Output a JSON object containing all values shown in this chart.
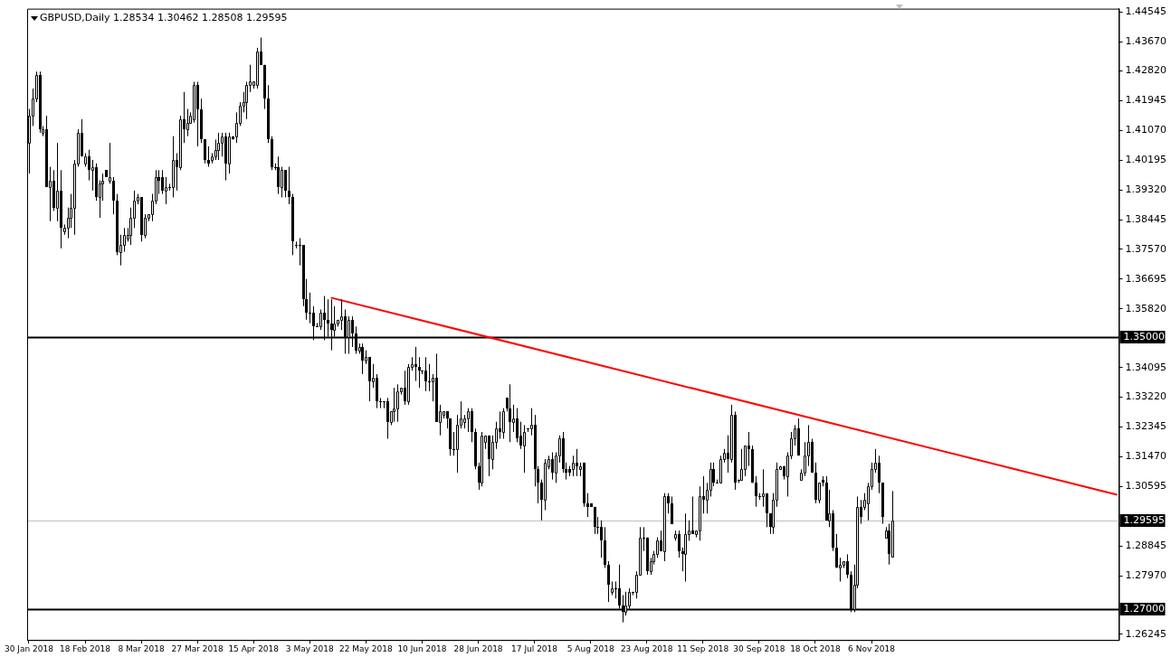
{
  "chart_data": {
    "type": "candlestick",
    "title": "GBPUSD,Daily 1.28534 1.30462 1.28508 1.29595",
    "categories": [
      "30 Jan 2018",
      null,
      null,
      null,
      null,
      null,
      null,
      null,
      null,
      null,
      null,
      null,
      null,
      null,
      null,
      null,
      "18 Feb 2018",
      null,
      null,
      null,
      null,
      null,
      null,
      null,
      null,
      null,
      null,
      null,
      null,
      null,
      null,
      null,
      "8 Mar 2018",
      null,
      null,
      null,
      null,
      null,
      null,
      null,
      null,
      null,
      null,
      null,
      null,
      null,
      null,
      null,
      "27 Mar 2018",
      null,
      null,
      null,
      null,
      null,
      null,
      null,
      null,
      null,
      null,
      null,
      null,
      null,
      null,
      null,
      "15 Apr 2018",
      null,
      null,
      null,
      null,
      null,
      null,
      null,
      null,
      null,
      null,
      null,
      null,
      null,
      null,
      null,
      "3 May 2018",
      null,
      null,
      null,
      null,
      null,
      null,
      null,
      null,
      null,
      null,
      null,
      null,
      null,
      null,
      null,
      "22 May 2018",
      null,
      null,
      null,
      null,
      null,
      null,
      null,
      null,
      null,
      null,
      null,
      null,
      null,
      null,
      null,
      "10 Jun 2018",
      null,
      null,
      null,
      null,
      null,
      null,
      null,
      null,
      null,
      null,
      null,
      null,
      null,
      null,
      null,
      "28 Jun 2018",
      null,
      null,
      null,
      null,
      null,
      null,
      null,
      null,
      null,
      null,
      null,
      null,
      null,
      null,
      null,
      "17 Jul 2018",
      null,
      null,
      null,
      null,
      null,
      null,
      null,
      null,
      null,
      null,
      null,
      null,
      null,
      null,
      null,
      "5 Aug 2018",
      null,
      null,
      null,
      null,
      null,
      null,
      null,
      null,
      null,
      null,
      null,
      null,
      null,
      null,
      null,
      "23 Aug 2018",
      null,
      null,
      null,
      null,
      null,
      null,
      null,
      null,
      null,
      null,
      null,
      null,
      null,
      null,
      null,
      "11 Sep 2018",
      null,
      null,
      null,
      null,
      null,
      null,
      null,
      null,
      null,
      null,
      null,
      null,
      null,
      null,
      null,
      "30 Sep 2018",
      null,
      null,
      null,
      null,
      null,
      null,
      null,
      null,
      null,
      null,
      null,
      null,
      null,
      null,
      null,
      "18 Oct 2018",
      null,
      null,
      null,
      null,
      null,
      null,
      null,
      null,
      null,
      null,
      null,
      null,
      null,
      null,
      null,
      "6 Nov 2018",
      null,
      null,
      null,
      null,
      null,
      null,
      null,
      null,
      null,
      null,
      null,
      null,
      null,
      null,
      null,
      null,
      null,
      null,
      null,
      null,
      null,
      null,
      null,
      null,
      null,
      null,
      null,
      null,
      null,
      null,
      null,
      null,
      null,
      null,
      null,
      null,
      null,
      null,
      null,
      null,
      null,
      null,
      null,
      null,
      null,
      null,
      null,
      null,
      null,
      null,
      null,
      null,
      null,
      null,
      null,
      null,
      null,
      null,
      null,
      null,
      null,
      null,
      null,
      null,
      null,
      null,
      null,
      null,
      null,
      null
    ],
    "ohlc": [
      [
        1.407,
        1.417,
        1.398,
        1.415
      ],
      [
        1.415,
        1.423,
        1.412,
        1.42
      ],
      [
        1.42,
        1.428,
        1.419,
        1.427
      ],
      [
        1.427,
        1.428,
        1.41,
        1.411
      ],
      [
        1.41,
        1.412,
        1.409,
        1.411
      ],
      [
        1.411,
        1.415,
        1.394,
        1.394
      ],
      [
        1.394,
        1.4,
        1.384,
        1.396
      ],
      [
        1.396,
        1.399,
        1.387,
        1.388
      ],
      [
        1.388,
        1.407,
        1.384,
        1.393
      ],
      [
        1.393,
        1.399,
        1.376,
        1.382
      ],
      [
        1.381,
        1.383,
        1.38,
        1.382
      ],
      [
        1.382,
        1.388,
        1.379,
        1.385
      ],
      [
        1.385,
        1.392,
        1.382,
        1.388
      ],
      [
        1.388,
        1.402,
        1.38,
        1.401
      ],
      [
        1.401,
        1.411,
        1.4,
        1.41
      ],
      [
        1.41,
        1.414,
        1.403,
        1.403
      ],
      [
        1.401,
        1.404,
        1.4,
        1.403
      ],
      [
        1.403,
        1.405,
        1.396,
        1.399
      ],
      [
        1.399,
        1.402,
        1.393,
        1.4
      ],
      [
        1.4,
        1.401,
        1.39,
        1.391
      ],
      [
        1.391,
        1.396,
        1.385,
        1.395
      ],
      [
        1.395,
        1.398,
        1.39,
        1.396
      ],
      [
        1.399,
        1.399,
        1.397,
        1.397
      ],
      [
        1.396,
        1.407,
        1.395,
        1.397
      ],
      [
        1.396,
        1.397,
        1.386,
        1.39
      ],
      [
        1.39,
        1.392,
        1.374,
        1.375
      ],
      [
        1.375,
        1.38,
        1.371,
        1.377
      ],
      [
        1.377,
        1.382,
        1.375,
        1.38
      ],
      [
        1.379,
        1.382,
        1.378,
        1.38
      ],
      [
        1.38,
        1.388,
        1.377,
        1.385
      ],
      [
        1.385,
        1.393,
        1.382,
        1.39
      ],
      [
        1.39,
        1.392,
        1.389,
        1.391
      ],
      [
        1.391,
        1.391,
        1.378,
        1.38
      ],
      [
        1.38,
        1.386,
        1.379,
        1.385
      ],
      [
        1.385,
        1.386,
        1.384,
        1.386
      ],
      [
        1.386,
        1.392,
        1.384,
        1.39
      ],
      [
        1.39,
        1.399,
        1.389,
        1.397
      ],
      [
        1.397,
        1.399,
        1.392,
        1.396
      ],
      [
        1.397,
        1.399,
        1.392,
        1.393
      ],
      [
        1.393,
        1.397,
        1.389,
        1.394
      ],
      [
        1.394,
        1.395,
        1.393,
        1.394
      ],
      [
        1.394,
        1.409,
        1.391,
        1.402
      ],
      [
        1.402,
        1.404,
        1.393,
        1.4
      ],
      [
        1.4,
        1.415,
        1.399,
        1.414
      ],
      [
        1.414,
        1.422,
        1.407,
        1.411
      ],
      [
        1.411,
        1.417,
        1.409,
        1.413
      ],
      [
        1.413,
        1.416,
        1.413,
        1.415
      ],
      [
        1.414,
        1.425,
        1.413,
        1.424
      ],
      [
        1.424,
        1.425,
        1.406,
        1.417
      ],
      [
        1.417,
        1.42,
        1.407,
        1.408
      ],
      [
        1.408,
        1.408,
        1.401,
        1.402
      ],
      [
        1.402,
        1.406,
        1.4,
        1.401
      ],
      [
        1.402,
        1.404,
        1.401,
        1.403
      ],
      [
        1.403,
        1.408,
        1.402,
        1.405
      ],
      [
        1.405,
        1.41,
        1.402,
        1.407
      ],
      [
        1.407,
        1.41,
        1.403,
        1.409
      ],
      [
        1.409,
        1.41,
        1.396,
        1.401
      ],
      [
        1.401,
        1.41,
        1.398,
        1.409
      ],
      [
        1.409,
        1.409,
        1.408,
        1.408
      ],
      [
        1.409,
        1.416,
        1.407,
        1.413
      ],
      [
        1.413,
        1.419,
        1.412,
        1.418
      ],
      [
        1.418,
        1.422,
        1.416,
        1.419
      ],
      [
        1.419,
        1.425,
        1.414,
        1.424
      ],
      [
        1.424,
        1.43,
        1.422,
        1.425
      ],
      [
        1.424,
        1.425,
        1.423,
        1.425
      ],
      [
        1.424,
        1.435,
        1.423,
        1.434
      ],
      [
        1.434,
        1.438,
        1.43,
        1.43
      ],
      [
        1.43,
        1.43,
        1.417,
        1.42
      ],
      [
        1.42,
        1.424,
        1.407,
        1.408
      ],
      [
        1.408,
        1.409,
        1.399,
        1.4
      ],
      [
        1.4,
        1.401,
        1.399,
        1.4
      ],
      [
        1.4,
        1.403,
        1.392,
        1.394
      ],
      [
        1.394,
        1.4,
        1.391,
        1.399
      ],
      [
        1.399,
        1.399,
        1.391,
        1.393
      ],
      [
        1.393,
        1.4,
        1.389,
        1.391
      ],
      [
        1.391,
        1.392,
        1.374,
        1.378
      ],
      [
        1.377,
        1.378,
        1.376,
        1.377
      ],
      [
        1.377,
        1.379,
        1.371,
        1.377
      ],
      [
        1.377,
        1.377,
        1.359,
        1.361
      ],
      [
        1.361,
        1.367,
        1.355,
        1.357
      ],
      [
        1.357,
        1.363,
        1.354,
        1.357
      ],
      [
        1.357,
        1.359,
        1.349,
        1.353
      ],
      [
        1.353,
        1.354,
        1.353,
        1.353
      ],
      [
        1.353,
        1.358,
        1.352,
        1.357
      ],
      [
        1.357,
        1.362,
        1.349,
        1.355
      ],
      [
        1.355,
        1.361,
        1.35,
        1.354
      ],
      [
        1.354,
        1.361,
        1.346,
        1.352
      ],
      [
        1.352,
        1.359,
        1.35,
        1.354
      ],
      [
        1.354,
        1.355,
        1.353,
        1.355
      ],
      [
        1.355,
        1.361,
        1.352,
        1.356
      ],
      [
        1.356,
        1.358,
        1.345,
        1.35
      ],
      [
        1.35,
        1.356,
        1.345,
        1.355
      ],
      [
        1.355,
        1.356,
        1.347,
        1.351
      ],
      [
        1.351,
        1.353,
        1.345,
        1.346
      ],
      [
        1.346,
        1.348,
        1.345,
        1.347
      ],
      [
        1.347,
        1.348,
        1.339,
        1.343
      ],
      [
        1.343,
        1.346,
        1.342,
        1.344
      ],
      [
        1.344,
        1.344,
        1.331,
        1.337
      ],
      [
        1.337,
        1.342,
        1.335,
        1.338
      ],
      [
        1.338,
        1.339,
        1.329,
        1.331
      ],
      [
        1.331,
        1.332,
        1.329,
        1.331
      ],
      [
        1.331,
        1.331,
        1.329,
        1.331
      ],
      [
        1.331,
        1.332,
        1.32,
        1.325
      ],
      [
        1.325,
        1.328,
        1.324,
        1.328
      ],
      [
        1.328,
        1.335,
        1.325,
        1.329
      ],
      [
        1.329,
        1.336,
        1.325,
        1.334
      ],
      [
        1.334,
        1.335,
        1.333,
        1.335
      ],
      [
        1.335,
        1.34,
        1.33,
        1.331
      ],
      [
        1.331,
        1.342,
        1.33,
        1.341
      ],
      [
        1.341,
        1.344,
        1.34,
        1.342
      ],
      [
        1.342,
        1.347,
        1.337,
        1.341
      ],
      [
        1.341,
        1.344,
        1.335,
        1.34
      ],
      [
        1.34,
        1.34,
        1.339,
        1.34
      ],
      [
        1.34,
        1.344,
        1.334,
        1.337
      ],
      [
        1.337,
        1.342,
        1.334,
        1.337
      ],
      [
        1.337,
        1.339,
        1.331,
        1.338
      ],
      [
        1.338,
        1.345,
        1.325,
        1.325
      ],
      [
        1.325,
        1.33,
        1.321,
        1.328
      ],
      [
        1.327,
        1.328,
        1.326,
        1.328
      ],
      [
        1.328,
        1.328,
        1.323,
        1.326
      ],
      [
        1.326,
        1.326,
        1.315,
        1.317
      ],
      [
        1.317,
        1.322,
        1.315,
        1.317
      ],
      [
        1.317,
        1.327,
        1.31,
        1.324
      ],
      [
        1.324,
        1.331,
        1.323,
        1.326
      ],
      [
        1.325,
        1.327,
        1.323,
        1.326
      ],
      [
        1.326,
        1.329,
        1.322,
        1.328
      ],
      [
        1.328,
        1.329,
        1.319,
        1.322
      ],
      [
        1.322,
        1.323,
        1.311,
        1.312
      ],
      [
        1.312,
        1.313,
        1.305,
        1.307
      ],
      [
        1.307,
        1.322,
        1.306,
        1.321
      ],
      [
        1.319,
        1.321,
        1.317,
        1.321
      ],
      [
        1.321,
        1.321,
        1.309,
        1.314
      ],
      [
        1.314,
        1.321,
        1.311,
        1.319
      ],
      [
        1.319,
        1.325,
        1.317,
        1.323
      ],
      [
        1.323,
        1.328,
        1.32,
        1.322
      ],
      [
        1.322,
        1.329,
        1.32,
        1.328
      ],
      [
        1.332,
        1.332,
        1.328,
        1.329
      ],
      [
        1.329,
        1.336,
        1.319,
        1.325
      ],
      [
        1.325,
        1.33,
        1.322,
        1.326
      ],
      [
        1.326,
        1.329,
        1.319,
        1.32
      ],
      [
        1.321,
        1.325,
        1.317,
        1.318
      ],
      [
        1.318,
        1.324,
        1.31,
        1.322
      ],
      [
        1.323,
        1.323,
        1.322,
        1.323
      ],
      [
        1.323,
        1.329,
        1.321,
        1.324
      ],
      [
        1.324,
        1.327,
        1.306,
        1.311
      ],
      [
        1.311,
        1.312,
        1.301,
        1.307
      ],
      [
        1.307,
        1.308,
        1.296,
        1.302
      ],
      [
        1.302,
        1.314,
        1.299,
        1.313
      ],
      [
        1.312,
        1.315,
        1.311,
        1.314
      ],
      [
        1.314,
        1.316,
        1.308,
        1.31
      ],
      [
        1.31,
        1.316,
        1.307,
        1.315
      ],
      [
        1.315,
        1.321,
        1.313,
        1.32
      ],
      [
        1.32,
        1.322,
        1.31,
        1.311
      ],
      [
        1.311,
        1.313,
        1.308,
        1.31
      ],
      [
        1.311,
        1.312,
        1.309,
        1.31
      ],
      [
        1.311,
        1.315,
        1.309,
        1.313
      ],
      [
        1.313,
        1.317,
        1.309,
        1.312
      ],
      [
        1.311,
        1.313,
        1.309,
        1.312
      ],
      [
        1.313,
        1.313,
        1.3,
        1.301
      ],
      [
        1.301,
        1.304,
        1.297,
        1.3
      ],
      [
        1.301,
        1.301,
        1.3,
        1.3
      ],
      [
        1.3,
        1.3,
        1.292,
        1.294
      ],
      [
        1.294,
        1.297,
        1.292,
        1.294
      ],
      [
        1.294,
        1.296,
        1.285,
        1.29
      ],
      [
        1.29,
        1.294,
        1.282,
        1.283
      ],
      [
        1.283,
        1.284,
        1.272,
        1.277
      ],
      [
        1.275,
        1.278,
        1.274,
        1.276
      ],
      [
        1.276,
        1.278,
        1.273,
        1.276
      ],
      [
        1.276,
        1.283,
        1.27,
        1.271
      ],
      [
        1.271,
        1.274,
        1.266,
        1.269
      ],
      [
        1.269,
        1.275,
        1.268,
        1.271
      ],
      [
        1.271,
        1.276,
        1.27,
        1.275
      ],
      [
        1.275,
        1.275,
        1.274,
        1.275
      ],
      [
        1.275,
        1.281,
        1.273,
        1.28
      ],
      [
        1.28,
        1.294,
        1.28,
        1.291
      ],
      [
        1.291,
        1.294,
        1.287,
        1.291
      ],
      [
        1.291,
        1.291,
        1.28,
        1.281
      ],
      [
        1.281,
        1.285,
        1.28,
        1.284
      ],
      [
        1.284,
        1.287,
        1.283,
        1.286
      ],
      [
        1.286,
        1.291,
        1.285,
        1.29
      ],
      [
        1.29,
        1.293,
        1.287,
        1.287
      ],
      [
        1.287,
        1.304,
        1.284,
        1.303
      ],
      [
        1.303,
        1.304,
        1.298,
        1.301
      ],
      [
        1.301,
        1.303,
        1.295,
        1.295
      ],
      [
        1.291,
        1.293,
        1.29,
        1.292
      ],
      [
        1.292,
        1.293,
        1.285,
        1.287
      ],
      [
        1.287,
        1.288,
        1.281,
        1.286
      ],
      [
        1.286,
        1.298,
        1.278,
        1.292
      ],
      [
        1.292,
        1.296,
        1.29,
        1.293
      ],
      [
        1.293,
        1.303,
        1.292,
        1.292
      ],
      [
        1.292,
        1.293,
        1.291,
        1.293
      ],
      [
        1.293,
        1.306,
        1.29,
        1.303
      ],
      [
        1.303,
        1.309,
        1.298,
        1.302
      ],
      [
        1.302,
        1.307,
        1.298,
        1.305
      ],
      [
        1.305,
        1.313,
        1.303,
        1.311
      ],
      [
        1.311,
        1.313,
        1.306,
        1.307
      ],
      [
        1.307,
        1.308,
        1.307,
        1.307
      ],
      [
        1.307,
        1.315,
        1.307,
        1.314
      ],
      [
        1.314,
        1.317,
        1.313,
        1.316
      ],
      [
        1.316,
        1.321,
        1.31,
        1.314
      ],
      [
        1.314,
        1.33,
        1.313,
        1.327
      ],
      [
        1.327,
        1.328,
        1.305,
        1.307
      ],
      [
        1.308,
        1.308,
        1.307,
        1.308
      ],
      [
        1.308,
        1.317,
        1.308,
        1.311
      ],
      [
        1.311,
        1.318,
        1.309,
        1.318
      ],
      [
        1.318,
        1.322,
        1.312,
        1.317
      ],
      [
        1.317,
        1.318,
        1.307,
        1.307
      ],
      [
        1.307,
        1.309,
        1.3,
        1.303
      ],
      [
        1.303,
        1.304,
        1.302,
        1.303
      ],
      [
        1.303,
        1.311,
        1.3,
        1.304
      ],
      [
        1.304,
        1.304,
        1.294,
        1.298
      ],
      [
        1.298,
        1.298,
        1.292,
        1.294
      ],
      [
        1.294,
        1.304,
        1.292,
        1.302
      ],
      [
        1.302,
        1.313,
        1.3,
        1.311
      ],
      [
        1.311,
        1.312,
        1.311,
        1.312
      ],
      [
        1.312,
        1.312,
        1.308,
        1.309
      ],
      [
        1.309,
        1.316,
        1.303,
        1.315
      ],
      [
        1.315,
        1.322,
        1.314,
        1.32
      ],
      [
        1.32,
        1.324,
        1.318,
        1.323
      ],
      [
        1.323,
        1.326,
        1.315,
        1.315
      ],
      [
        1.308,
        1.311,
        1.308,
        1.31
      ],
      [
        1.31,
        1.319,
        1.309,
        1.315
      ],
      [
        1.315,
        1.324,
        1.312,
        1.319
      ],
      [
        1.319,
        1.32,
        1.31,
        1.31
      ],
      [
        1.31,
        1.313,
        1.301,
        1.302
      ],
      [
        1.302,
        1.307,
        1.301,
        1.307
      ],
      [
        1.308,
        1.309,
        1.306,
        1.307
      ],
      [
        1.307,
        1.309,
        1.296,
        1.296
      ],
      [
        1.296,
        1.305,
        1.294,
        1.298
      ],
      [
        1.298,
        1.299,
        1.287,
        1.288
      ],
      [
        1.288,
        1.292,
        1.282,
        1.282
      ],
      [
        1.282,
        1.285,
        1.278,
        1.283
      ],
      [
        1.283,
        1.284,
        1.282,
        1.284
      ],
      [
        1.284,
        1.286,
        1.279,
        1.28
      ],
      [
        1.28,
        1.281,
        1.269,
        1.27
      ],
      [
        1.27,
        1.283,
        1.269,
        1.277
      ],
      [
        1.277,
        1.303,
        1.276,
        1.3
      ],
      [
        1.3,
        1.302,
        1.295,
        1.297
      ],
      [
        1.3,
        1.304,
        1.299,
        1.302
      ],
      [
        1.301,
        1.307,
        1.296,
        1.306
      ],
      [
        1.306,
        1.313,
        1.305,
        1.311
      ],
      [
        1.311,
        1.317,
        1.31,
        1.313
      ],
      [
        1.313,
        1.315,
        1.304,
        1.307
      ],
      [
        1.307,
        1.307,
        1.295,
        1.297
      ],
      [
        1.291,
        1.294,
        1.291,
        1.293
      ],
      [
        1.293,
        1.295,
        1.283,
        1.286
      ],
      [
        1.28534,
        1.30462,
        1.28508,
        1.29595
      ],
      null,
      null,
      null,
      null,
      null,
      null,
      null,
      null,
      null,
      null,
      null,
      null,
      null,
      null,
      null,
      null,
      null,
      null,
      null,
      null,
      null,
      null,
      null,
      null,
      null,
      null,
      null,
      null,
      null,
      null,
      null,
      null,
      null,
      null,
      null,
      null,
      null,
      null,
      null,
      null,
      null,
      null,
      null,
      null,
      null,
      null,
      null,
      null,
      null,
      null,
      null,
      null,
      null,
      null,
      null,
      null,
      null,
      null,
      null,
      null,
      null,
      null,
      null,
      null
    ],
    "series": [
      {
        "type": "line",
        "color": "#ff0000",
        "values": [
          null,
          null,
          null,
          null,
          null,
          null,
          null,
          null,
          null,
          null,
          null,
          null,
          null,
          null,
          null,
          null,
          null,
          null,
          null,
          null,
          null,
          null,
          null,
          null,
          null,
          null,
          null,
          null,
          null,
          null,
          null,
          null,
          null,
          null,
          null,
          null,
          null,
          null,
          null,
          null,
          null,
          null,
          null,
          null,
          null,
          null,
          null,
          null,
          null,
          null,
          null,
          null,
          null,
          null,
          null,
          null,
          null,
          null,
          null,
          null,
          null,
          null,
          null,
          null,
          null,
          null,
          null,
          null,
          null,
          null,
          null,
          null,
          null,
          null,
          null,
          null,
          null,
          null,
          null,
          null,
          null,
          null,
          null,
          null,
          null,
          null,
          1.3615,
          null,
          null,
          null,
          null,
          null,
          null,
          null,
          null,
          null,
          null,
          null,
          null,
          null,
          null,
          null,
          null,
          null,
          null,
          null,
          null,
          null,
          null,
          null,
          null,
          null,
          null,
          null,
          null,
          null,
          null,
          null,
          null,
          null,
          null,
          null,
          null,
          null,
          null,
          null,
          null,
          null,
          null,
          null,
          null,
          null,
          null,
          null,
          null,
          null,
          null,
          null,
          null,
          null,
          null,
          null,
          null,
          null,
          null,
          null,
          null,
          null,
          null,
          null,
          null,
          null,
          null,
          null,
          null,
          null,
          null,
          null,
          null,
          null,
          null,
          null,
          null,
          null,
          null,
          null,
          null,
          null,
          null,
          null,
          null,
          null,
          null,
          null,
          null,
          null,
          null,
          null,
          null,
          null,
          null,
          null,
          null,
          null,
          null,
          null,
          null,
          null,
          null,
          null,
          null,
          null,
          null,
          null,
          null,
          null,
          null,
          null,
          null,
          null,
          null,
          null,
          null,
          null,
          null,
          null,
          null,
          null,
          null,
          null,
          null,
          null,
          null,
          null,
          null,
          null,
          null,
          null,
          null,
          null,
          null,
          null,
          null,
          null,
          null,
          null,
          null,
          null,
          null,
          null,
          null,
          null,
          null,
          null,
          null,
          null,
          null,
          null,
          null,
          null,
          null,
          null,
          null,
          null,
          null,
          null,
          null,
          null,
          null,
          null,
          null,
          null,
          null,
          null,
          null,
          null,
          null,
          null,
          null,
          null,
          null,
          null,
          null,
          null,
          null,
          null,
          null,
          null,
          null,
          null,
          null,
          null,
          null,
          null,
          null,
          null,
          null,
          null,
          null,
          null,
          null,
          null,
          null,
          null,
          null,
          null,
          null,
          null,
          null,
          null,
          null,
          null,
          null,
          null,
          null,
          null,
          null,
          null,
          null,
          null,
          null,
          null,
          null,
          null,
          null,
          null,
          null,
          null,
          null,
          null,
          1.3035
        ]
      }
    ],
    "ylim": [
      1.2608,
      1.4465
    ],
    "yticks": [
      1.44545,
      {
        "value": 1.4367,
        "label": "1.43670"
      },
      {
        "value": 1.4282,
        "label": "1.42820"
      },
      1.41945,
      {
        "value": 1.4107,
        "label": "1.41070"
      },
      1.40195,
      {
        "value": 1.3932,
        "label": "1.39320"
      },
      1.38445,
      {
        "value": 1.3757,
        "label": "1.37570"
      },
      1.36695,
      {
        "value": 1.3582,
        "label": "1.35820"
      },
      1.34095,
      {
        "value": 1.3322,
        "label": "1.33220"
      },
      1.32345,
      {
        "value": 1.3147,
        "label": "1.31470"
      },
      1.30595,
      1.28845,
      {
        "value": 1.2797,
        "label": "1.27970"
      },
      1.26245
    ],
    "ref_lines": [
      {
        "axis": "y",
        "value": 1.35,
        "label": "1.35000",
        "color": "#000000"
      },
      {
        "axis": "y",
        "value": 1.27,
        "label": "1.27000",
        "color": "#000000"
      },
      {
        "axis": "y",
        "value": 1.29595,
        "label": "1.29595",
        "color": "#c0c0c0"
      }
    ]
  }
}
